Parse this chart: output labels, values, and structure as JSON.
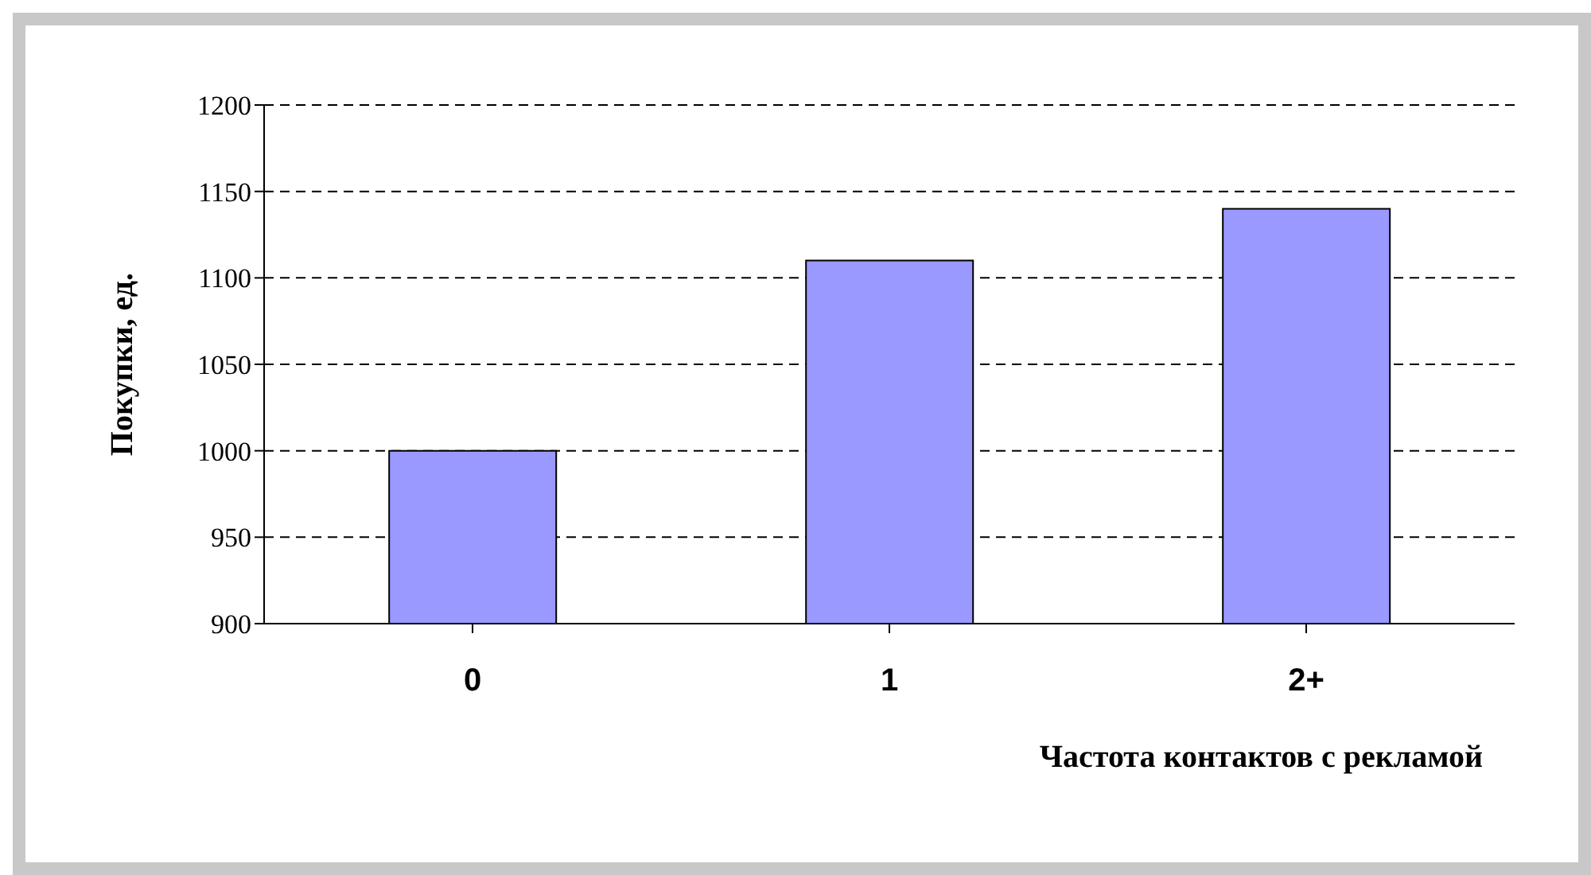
{
  "chart_data": {
    "type": "bar",
    "xlabel": "Частота контактов с рекламой",
    "ylabel": "Покупки, ед.",
    "categories": [
      "0",
      "1",
      "2+"
    ],
    "values": [
      1000,
      1110,
      1140
    ],
    "color": "#9999ff",
    "ylim": [
      900,
      1200
    ],
    "yticks": [
      900,
      950,
      1000,
      1050,
      1100,
      1150,
      1200
    ],
    "grid": "y"
  }
}
